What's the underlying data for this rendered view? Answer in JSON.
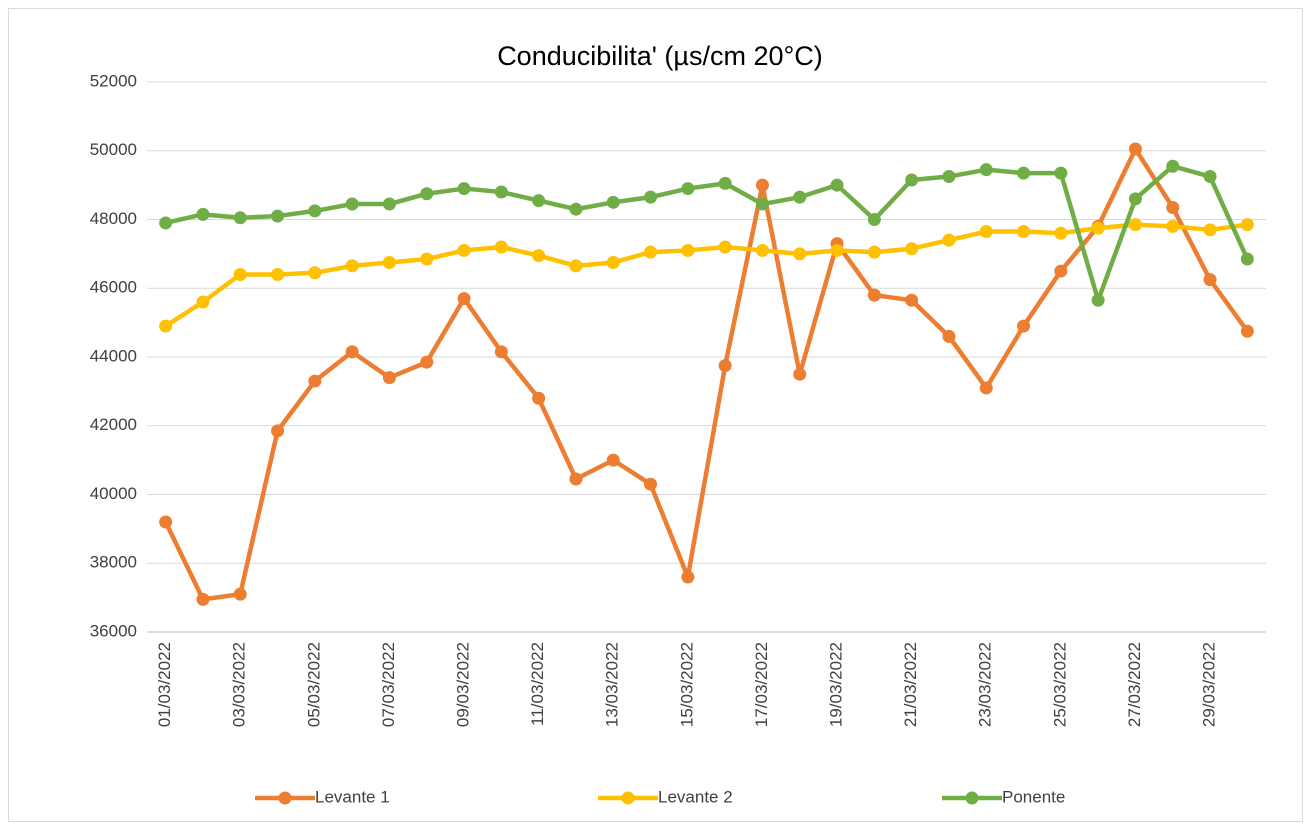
{
  "chart_data": {
    "type": "line",
    "title": "Conducibilita' (µs/cm 20°C)",
    "categories": [
      "01/03/2022",
      null,
      "03/03/2022",
      null,
      "05/03/2022",
      null,
      "07/03/2022",
      null,
      "09/03/2022",
      null,
      "11/03/2022",
      null,
      "13/03/2022",
      null,
      "15/03/2022",
      null,
      "17/03/2022",
      null,
      "19/03/2022",
      null,
      "21/03/2022",
      null,
      "23/03/2022",
      null,
      "25/03/2022",
      null,
      "27/03/2022",
      null,
      "29/03/2022",
      null
    ],
    "series": [
      {
        "name": "Levante 1",
        "color": "#ED7D31",
        "values": [
          39200,
          36950,
          37100,
          41850,
          43300,
          44150,
          43400,
          43850,
          45700,
          44150,
          42800,
          40450,
          41000,
          40300,
          37600,
          43750,
          49000,
          43500,
          47300,
          45800,
          45650,
          44600,
          43100,
          44900,
          46500,
          47800,
          50050,
          48350,
          46250,
          44750
        ]
      },
      {
        "name": "Levante 2",
        "color": "#FFC000",
        "values": [
          44900,
          45600,
          46400,
          46400,
          46450,
          46650,
          46750,
          46850,
          47100,
          47200,
          46950,
          46650,
          46750,
          47050,
          47100,
          47200,
          47100,
          47000,
          47100,
          47050,
          47150,
          47400,
          47650,
          47650,
          47600,
          47750,
          47850,
          47800,
          47700,
          47850
        ]
      },
      {
        "name": "Ponente",
        "color": "#70AD47",
        "values": [
          47900,
          48150,
          48050,
          48100,
          48250,
          48450,
          48450,
          48750,
          48900,
          48800,
          48550,
          48300,
          48500,
          48650,
          48900,
          49050,
          48450,
          48650,
          49000,
          48000,
          49150,
          49250,
          49450,
          49350,
          49350,
          45650,
          48600,
          49550,
          49250,
          46850
        ]
      }
    ],
    "ylim": [
      36000,
      52000
    ],
    "yticks": [
      36000,
      38000,
      40000,
      42000,
      44000,
      46000,
      48000,
      50000,
      52000
    ],
    "grid": true,
    "legend": "bottom"
  }
}
